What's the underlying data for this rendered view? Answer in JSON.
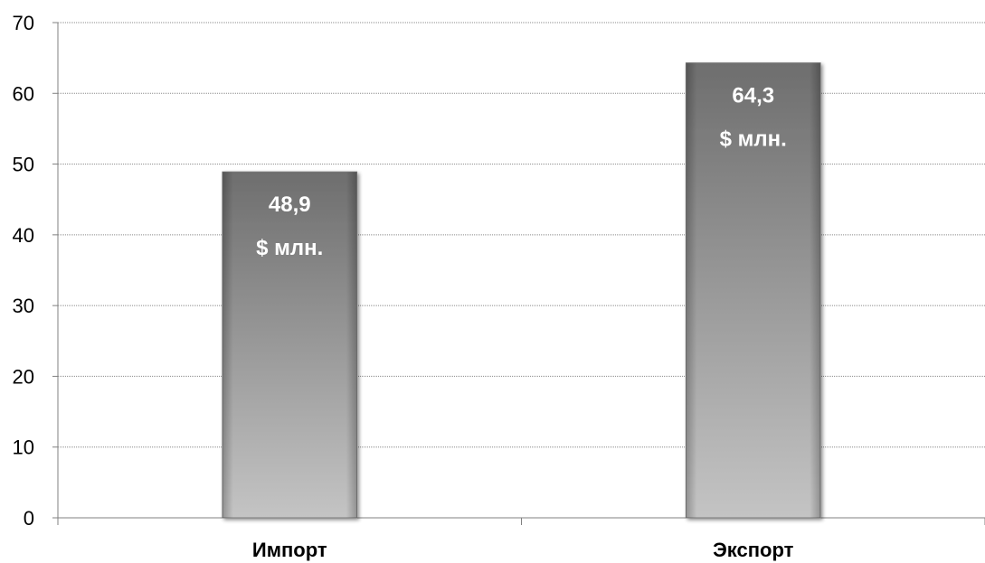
{
  "chart_data": {
    "type": "bar",
    "categories": [
      "Импорт",
      "Экспорт"
    ],
    "values": [
      48.9,
      64.3
    ],
    "data_labels": [
      {
        "value": "48,9",
        "unit": "$ млн."
      },
      {
        "value": "64,3",
        "unit": "$ млн."
      }
    ],
    "ylim": [
      0,
      70
    ],
    "yticks": [
      "0",
      "10",
      "20",
      "30",
      "40",
      "50",
      "60",
      "70"
    ],
    "grid": true,
    "legend": "none",
    "colors": {
      "bar_top": "#6e6e6e",
      "bar_bottom": "#c4c4c4",
      "grid": "#8c8c8c",
      "axis": "#808080"
    }
  }
}
